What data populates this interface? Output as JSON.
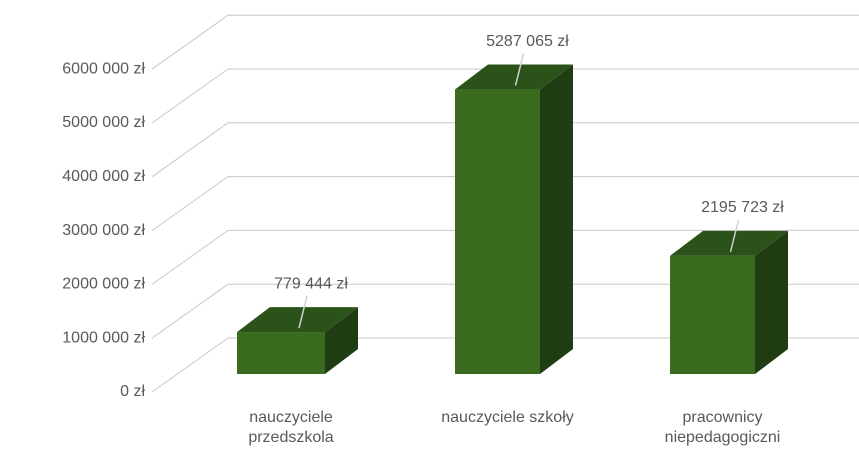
{
  "chart_data": {
    "type": "bar3d",
    "categories": [
      "nauczyciele przedszkola",
      "nauczyciele szkoły",
      "pracownicy niepedagogiczni"
    ],
    "values": [
      779444,
      5287065,
      2195723
    ],
    "value_labels": [
      "779 444 zł",
      "5287 065 zł",
      "2195 723 zł"
    ],
    "color": "#3b6b1f",
    "ylim": [
      0,
      6000000
    ],
    "yticks": [
      {
        "value": 0,
        "label": "0 zł"
      },
      {
        "value": 1000000,
        "label": "1000 000 zł"
      },
      {
        "value": 2000000,
        "label": "2000 000 zł"
      },
      {
        "value": 3000000,
        "label": "3000 000 zł"
      },
      {
        "value": 4000000,
        "label": "4000 000 zł"
      },
      {
        "value": 5000000,
        "label": "5000 000 zł"
      },
      {
        "value": 6000000,
        "label": "6000 000 zł"
      }
    ],
    "grid": true
  }
}
